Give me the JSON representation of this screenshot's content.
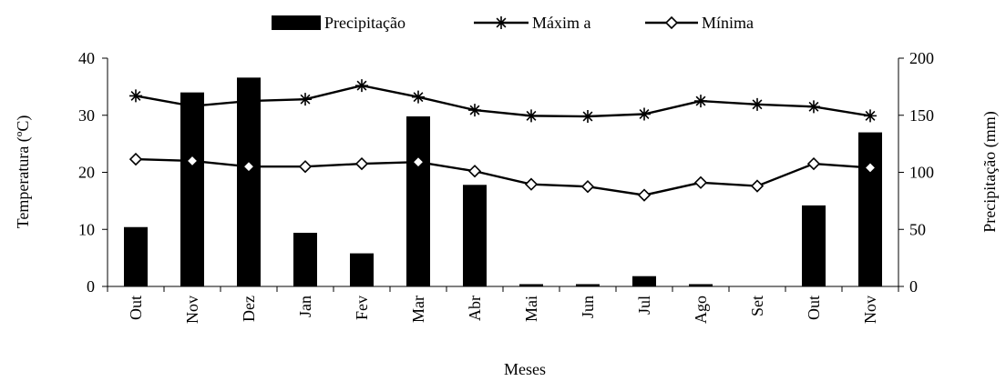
{
  "chart_data": {
    "type": "bar+line",
    "categories": [
      "Out",
      "Nov",
      "Dez",
      "Jan",
      "Fev",
      "Mar",
      "Abr",
      "Mai",
      "Jun",
      "Jul",
      "Ago",
      "Set",
      "Out",
      "Nov"
    ],
    "xlabel": "Meses",
    "ylabel_left": "Temperatura (ºC)",
    "ylabel_right": "Precipitação (mm)",
    "ylim_left": [
      0,
      40
    ],
    "yticks_left": [
      0,
      10,
      20,
      30,
      40
    ],
    "ylim_right": [
      0,
      200
    ],
    "yticks_right": [
      0,
      50,
      100,
      150,
      200
    ],
    "grid": false,
    "legend_position": "top",
    "series": [
      {
        "name": "Precipitação",
        "type": "bar",
        "axis": "right",
        "color": "#000000",
        "values": [
          52,
          170,
          183,
          47,
          29,
          149,
          89,
          2,
          2,
          9,
          2,
          0,
          71,
          135
        ]
      },
      {
        "name": "Máxim a",
        "type": "line",
        "marker": "asterisk",
        "axis": "left",
        "color": "#000000",
        "values": [
          33.4,
          31.6,
          32.5,
          32.8,
          35.2,
          33.2,
          30.9,
          29.9,
          29.8,
          30.2,
          32.5,
          31.9,
          31.5,
          29.9
        ]
      },
      {
        "name": "Mínima",
        "type": "line",
        "marker": "diamond",
        "axis": "left",
        "color": "#000000",
        "values": [
          22.3,
          22.0,
          21.0,
          21.0,
          21.5,
          21.8,
          20.2,
          17.9,
          17.5,
          16.0,
          18.2,
          17.6,
          21.5,
          20.8
        ]
      }
    ]
  }
}
